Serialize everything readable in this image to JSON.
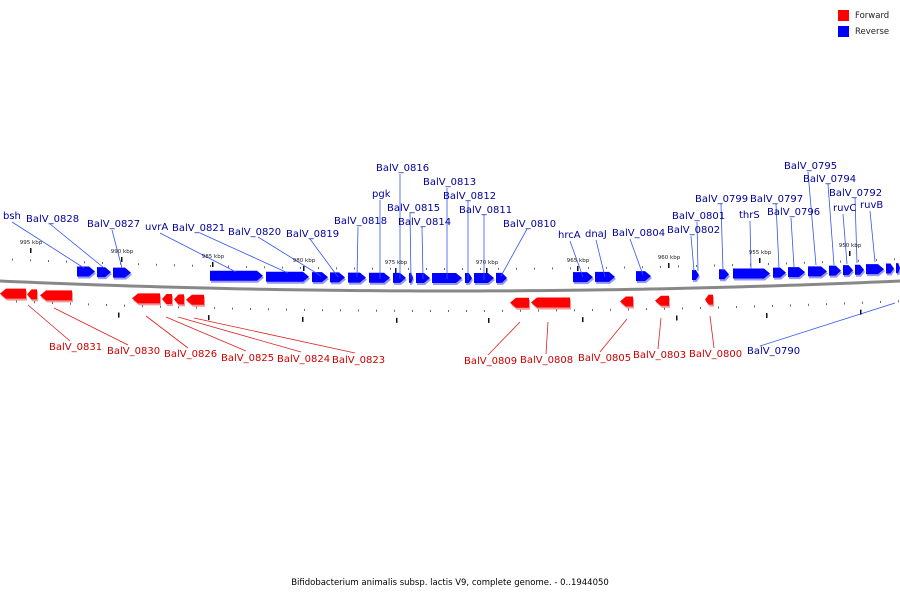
{
  "caption": "Bifidobacterium animalis subsp. lactis V9, complete genome. - 0..1944050",
  "legend": {
    "forward": {
      "label": "Forward",
      "color": "#ff0000"
    },
    "reverse": {
      "label": "Reverse",
      "color": "#0000ff"
    }
  },
  "colors": {
    "forward_label": "#cc0000",
    "reverse_label": "#000099",
    "backbone": "#888888",
    "leader": "#3355ee",
    "leader_fwd": "#dd2222"
  },
  "scale_ticks": [
    "995 kbp",
    "990 kbp",
    "985 kbp",
    "980 kbp",
    "975 kbp",
    "970 kbp",
    "965 kbp",
    "960 kbp",
    "955 kbp",
    "950 kbp"
  ],
  "reverse_genes": [
    "bsh",
    "BalV_0828",
    "BalV_0827",
    "uvrA",
    "BalV_0821",
    "BalV_0820",
    "BalV_0819",
    "BalV_0818",
    "pgk",
    "BalV_0816",
    "BalV_0815",
    "BalV_0814",
    "BalV_0813",
    "BalV_0812",
    "BalV_0811",
    "BalV_0810",
    "hrcA",
    "dnaJ",
    "BalV_0804",
    "BalV_0802",
    "BalV_0801",
    "BalV_0799",
    "thrS",
    "BalV_0797",
    "BalV_0796",
    "BalV_0795",
    "BalV_0794",
    "ruvC",
    "BalV_0792",
    "ruvB",
    "BalV_0790"
  ],
  "forward_genes": [
    "BalV_0831",
    "BalV_0830",
    "BalV_0826",
    "BalV_0825",
    "BalV_0824",
    "BalV_0823",
    "BalV_0809",
    "BalV_0808",
    "BalV_0805",
    "BalV_0803",
    "BalV_0800"
  ]
}
